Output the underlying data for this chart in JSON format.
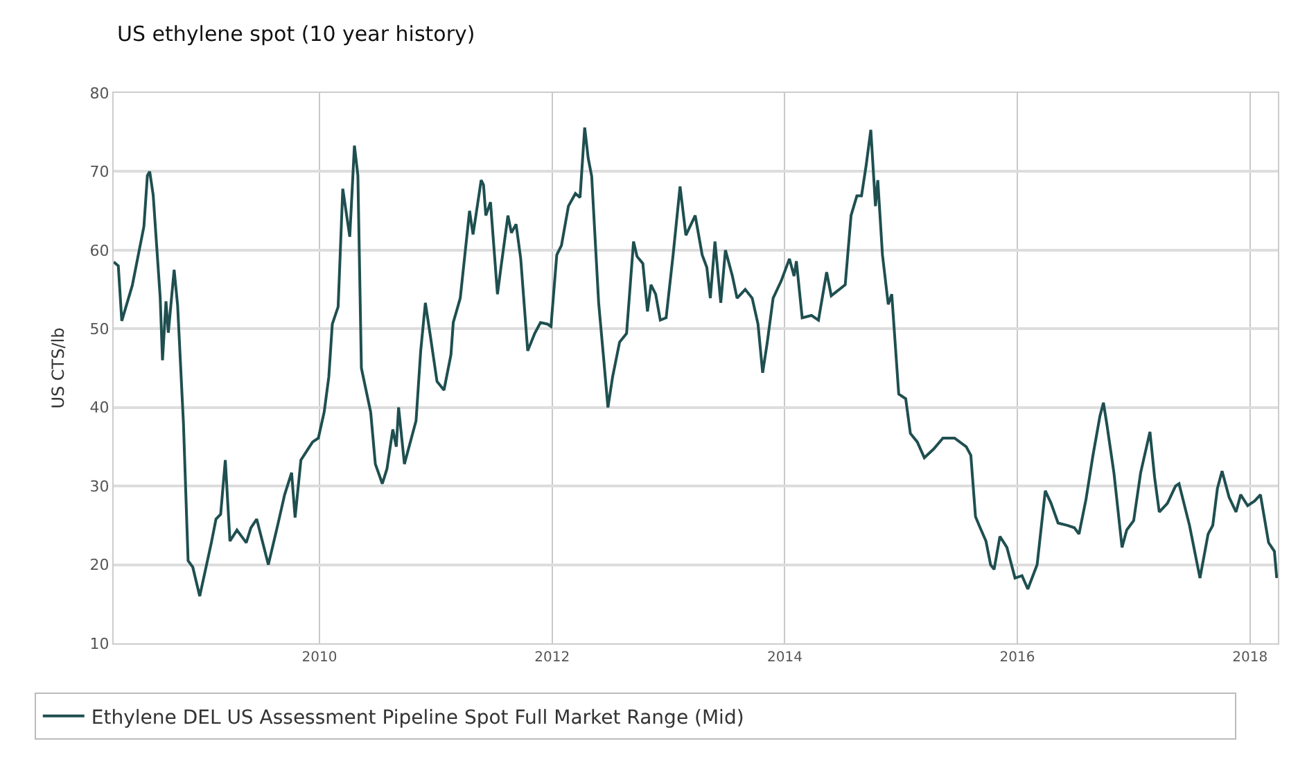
{
  "chart_data": {
    "type": "line",
    "title": "US ethylene spot (10 year history)",
    "ylabel": "US CTS/lb",
    "xlim": [
      2008.23,
      2018.24
    ],
    "xticks": [
      2010,
      2012,
      2014,
      2016,
      2018
    ],
    "ylim": [
      10,
      80
    ],
    "yticks": [
      10,
      20,
      30,
      40,
      50,
      60,
      70,
      80
    ],
    "grid": true,
    "legend": "bottom",
    "marker": "none",
    "line_style": "solid",
    "x": [
      2008.23,
      2008.27,
      2008.3,
      2008.33,
      2008.39,
      2008.45,
      2008.49,
      2008.52,
      2008.54,
      2008.57,
      2008.63,
      2008.65,
      2008.68,
      2008.7,
      2008.75,
      2008.78,
      2008.83,
      2008.87,
      2008.91,
      2008.97,
      2009.07,
      2009.11,
      2009.15,
      2009.19,
      2009.23,
      2009.29,
      2009.37,
      2009.41,
      2009.46,
      2009.56,
      2009.64,
      2009.7,
      2009.76,
      2009.79,
      2009.84,
      2009.94,
      2009.99,
      2010.04,
      2010.08,
      2010.11,
      2010.16,
      2010.2,
      2010.26,
      2010.3,
      2010.33,
      2010.36,
      2010.44,
      2010.48,
      2010.54,
      2010.58,
      2010.63,
      2010.66,
      2010.68,
      2010.73,
      2010.83,
      2010.87,
      2010.91,
      2010.95,
      2011.01,
      2011.07,
      2011.13,
      2011.15,
      2011.21,
      2011.29,
      2011.32,
      2011.39,
      2011.41,
      2011.43,
      2011.47,
      2011.53,
      2011.56,
      2011.62,
      2011.65,
      2011.69,
      2011.73,
      2011.79,
      2011.85,
      2011.9,
      2011.96,
      2011.99,
      2012.04,
      2012.08,
      2012.14,
      2012.2,
      2012.24,
      2012.28,
      2012.31,
      2012.34,
      2012.4,
      2012.44,
      2012.48,
      2012.52,
      2012.58,
      2012.64,
      2012.7,
      2012.73,
      2012.78,
      2012.82,
      2012.85,
      2012.89,
      2012.93,
      2012.98,
      2013.04,
      2013.1,
      2013.15,
      2013.23,
      2013.29,
      2013.33,
      2013.36,
      2013.4,
      2013.45,
      2013.49,
      2013.55,
      2013.59,
      2013.66,
      2013.72,
      2013.77,
      2013.81,
      2013.85,
      2013.9,
      2013.97,
      2014.04,
      2014.08,
      2014.1,
      2014.15,
      2014.23,
      2014.29,
      2014.36,
      2014.4,
      2014.52,
      2014.57,
      2014.62,
      2014.66,
      2014.7,
      2014.74,
      2014.78,
      2014.8,
      2014.84,
      2014.89,
      2014.92,
      2014.98,
      2015.04,
      2015.08,
      2015.14,
      2015.2,
      2015.28,
      2015.36,
      2015.46,
      2015.56,
      2015.6,
      2015.64,
      2015.68,
      2015.73,
      2015.77,
      2015.8,
      2015.85,
      2015.91,
      2015.98,
      2016.04,
      2016.09,
      2016.17,
      2016.24,
      2016.29,
      2016.35,
      2016.43,
      2016.49,
      2016.53,
      2016.59,
      2016.65,
      2016.71,
      2016.74,
      2016.77,
      2016.83,
      2016.9,
      2016.94,
      2017.0,
      2017.06,
      2017.14,
      2017.18,
      2017.22,
      2017.29,
      2017.36,
      2017.39,
      2017.48,
      2017.57,
      2017.64,
      2017.68,
      2017.72,
      2017.76,
      2017.82,
      2017.88,
      2017.92,
      2017.98,
      2018.04,
      2018.09,
      2018.16,
      2018.21,
      2018.23
    ],
    "series": [
      {
        "name": "Ethylene DEL US Assessment Pipeline Spot Full Market Range (Mid)",
        "color": "#1f4f50",
        "values": [
          58.5,
          58,
          51,
          52.5,
          55.5,
          60,
          63,
          69.5,
          70,
          67,
          54,
          46,
          53.5,
          49.5,
          57.5,
          53,
          38,
          20.5,
          19.7,
          16,
          22.8,
          25.8,
          26.4,
          33.3,
          23,
          24.4,
          22.8,
          24.7,
          25.8,
          20,
          25,
          28.9,
          31.7,
          26,
          33.3,
          35.6,
          36.1,
          39.4,
          43.9,
          50.6,
          52.8,
          67.8,
          61.7,
          73.3,
          69.5,
          45,
          39.4,
          32.8,
          30.3,
          32.2,
          37.2,
          35,
          40,
          32.8,
          38.3,
          47.2,
          53.3,
          49.4,
          43.3,
          42.2,
          46.7,
          50.8,
          53.9,
          65,
          62,
          68.9,
          68.3,
          64.4,
          66.1,
          54.4,
          57.8,
          64.4,
          62.2,
          63.3,
          58.9,
          47.2,
          49.4,
          50.8,
          50.6,
          50.3,
          59.4,
          60.6,
          65.6,
          67.2,
          66.7,
          75.6,
          71.7,
          69.4,
          53.3,
          46.7,
          40,
          43.9,
          48.3,
          49.4,
          61.1,
          59.2,
          58.3,
          52.2,
          55.6,
          54.4,
          51.1,
          51.4,
          59.4,
          68.1,
          61.9,
          64.4,
          59.4,
          57.8,
          53.9,
          61.1,
          53.3,
          60,
          56.7,
          53.9,
          55,
          53.9,
          50.6,
          44.4,
          48.3,
          53.9,
          56.1,
          58.9,
          56.7,
          58.6,
          51.4,
          51.7,
          51.1,
          57.2,
          54.2,
          55.6,
          64.4,
          66.9,
          66.9,
          70.8,
          75.3,
          65.6,
          68.9,
          59.4,
          53.1,
          54.4,
          41.7,
          41.1,
          36.7,
          35.6,
          33.6,
          34.7,
          36.1,
          36.1,
          35,
          33.9,
          26.1,
          24.7,
          23,
          20,
          19.4,
          23.6,
          22.2,
          18.3,
          18.6,
          16.9,
          20,
          29.4,
          27.8,
          25.3,
          25,
          24.7,
          23.9,
          28.3,
          33.9,
          38.9,
          40.6,
          37.8,
          31.7,
          22.2,
          24.4,
          25.6,
          31.7,
          36.9,
          31.1,
          26.7,
          27.8,
          30,
          30.3,
          25,
          18.3,
          23.9,
          25,
          29.7,
          31.9,
          28.6,
          26.7,
          28.9,
          27.5,
          28.1,
          28.9,
          22.8,
          21.7,
          18.3
        ]
      }
    ]
  }
}
